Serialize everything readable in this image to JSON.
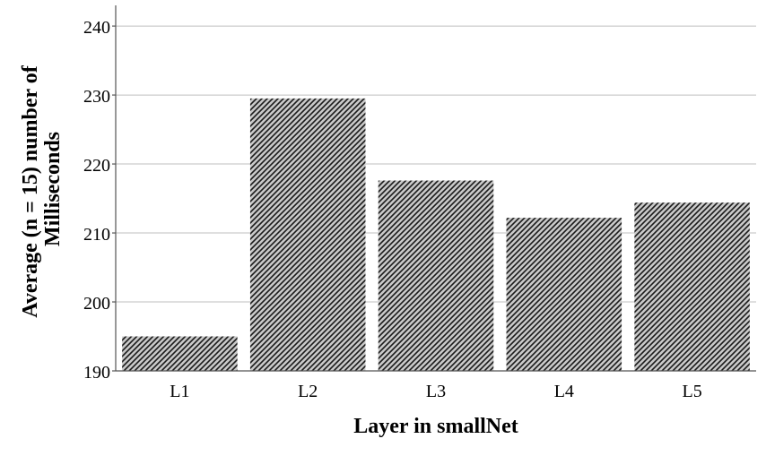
{
  "chart_data": {
    "type": "bar",
    "title": "",
    "xlabel": "Layer in smallNet",
    "ylabel_lines": [
      "Average (n = 15) number of",
      "Milliseconds"
    ],
    "categories": [
      "L1",
      "L2",
      "L3",
      "L4",
      "L5"
    ],
    "values": [
      195,
      229.5,
      217.6,
      212.2,
      214.4
    ],
    "ylim": [
      190,
      243
    ],
    "yticks": [
      190,
      200,
      210,
      220,
      230,
      240
    ],
    "grid": true,
    "legend": "none",
    "bar_fill": "#c8c8c8",
    "hatch_color": "#1a1a1a",
    "grid_color": "#bfbfbf",
    "axis_color": "#555555"
  }
}
